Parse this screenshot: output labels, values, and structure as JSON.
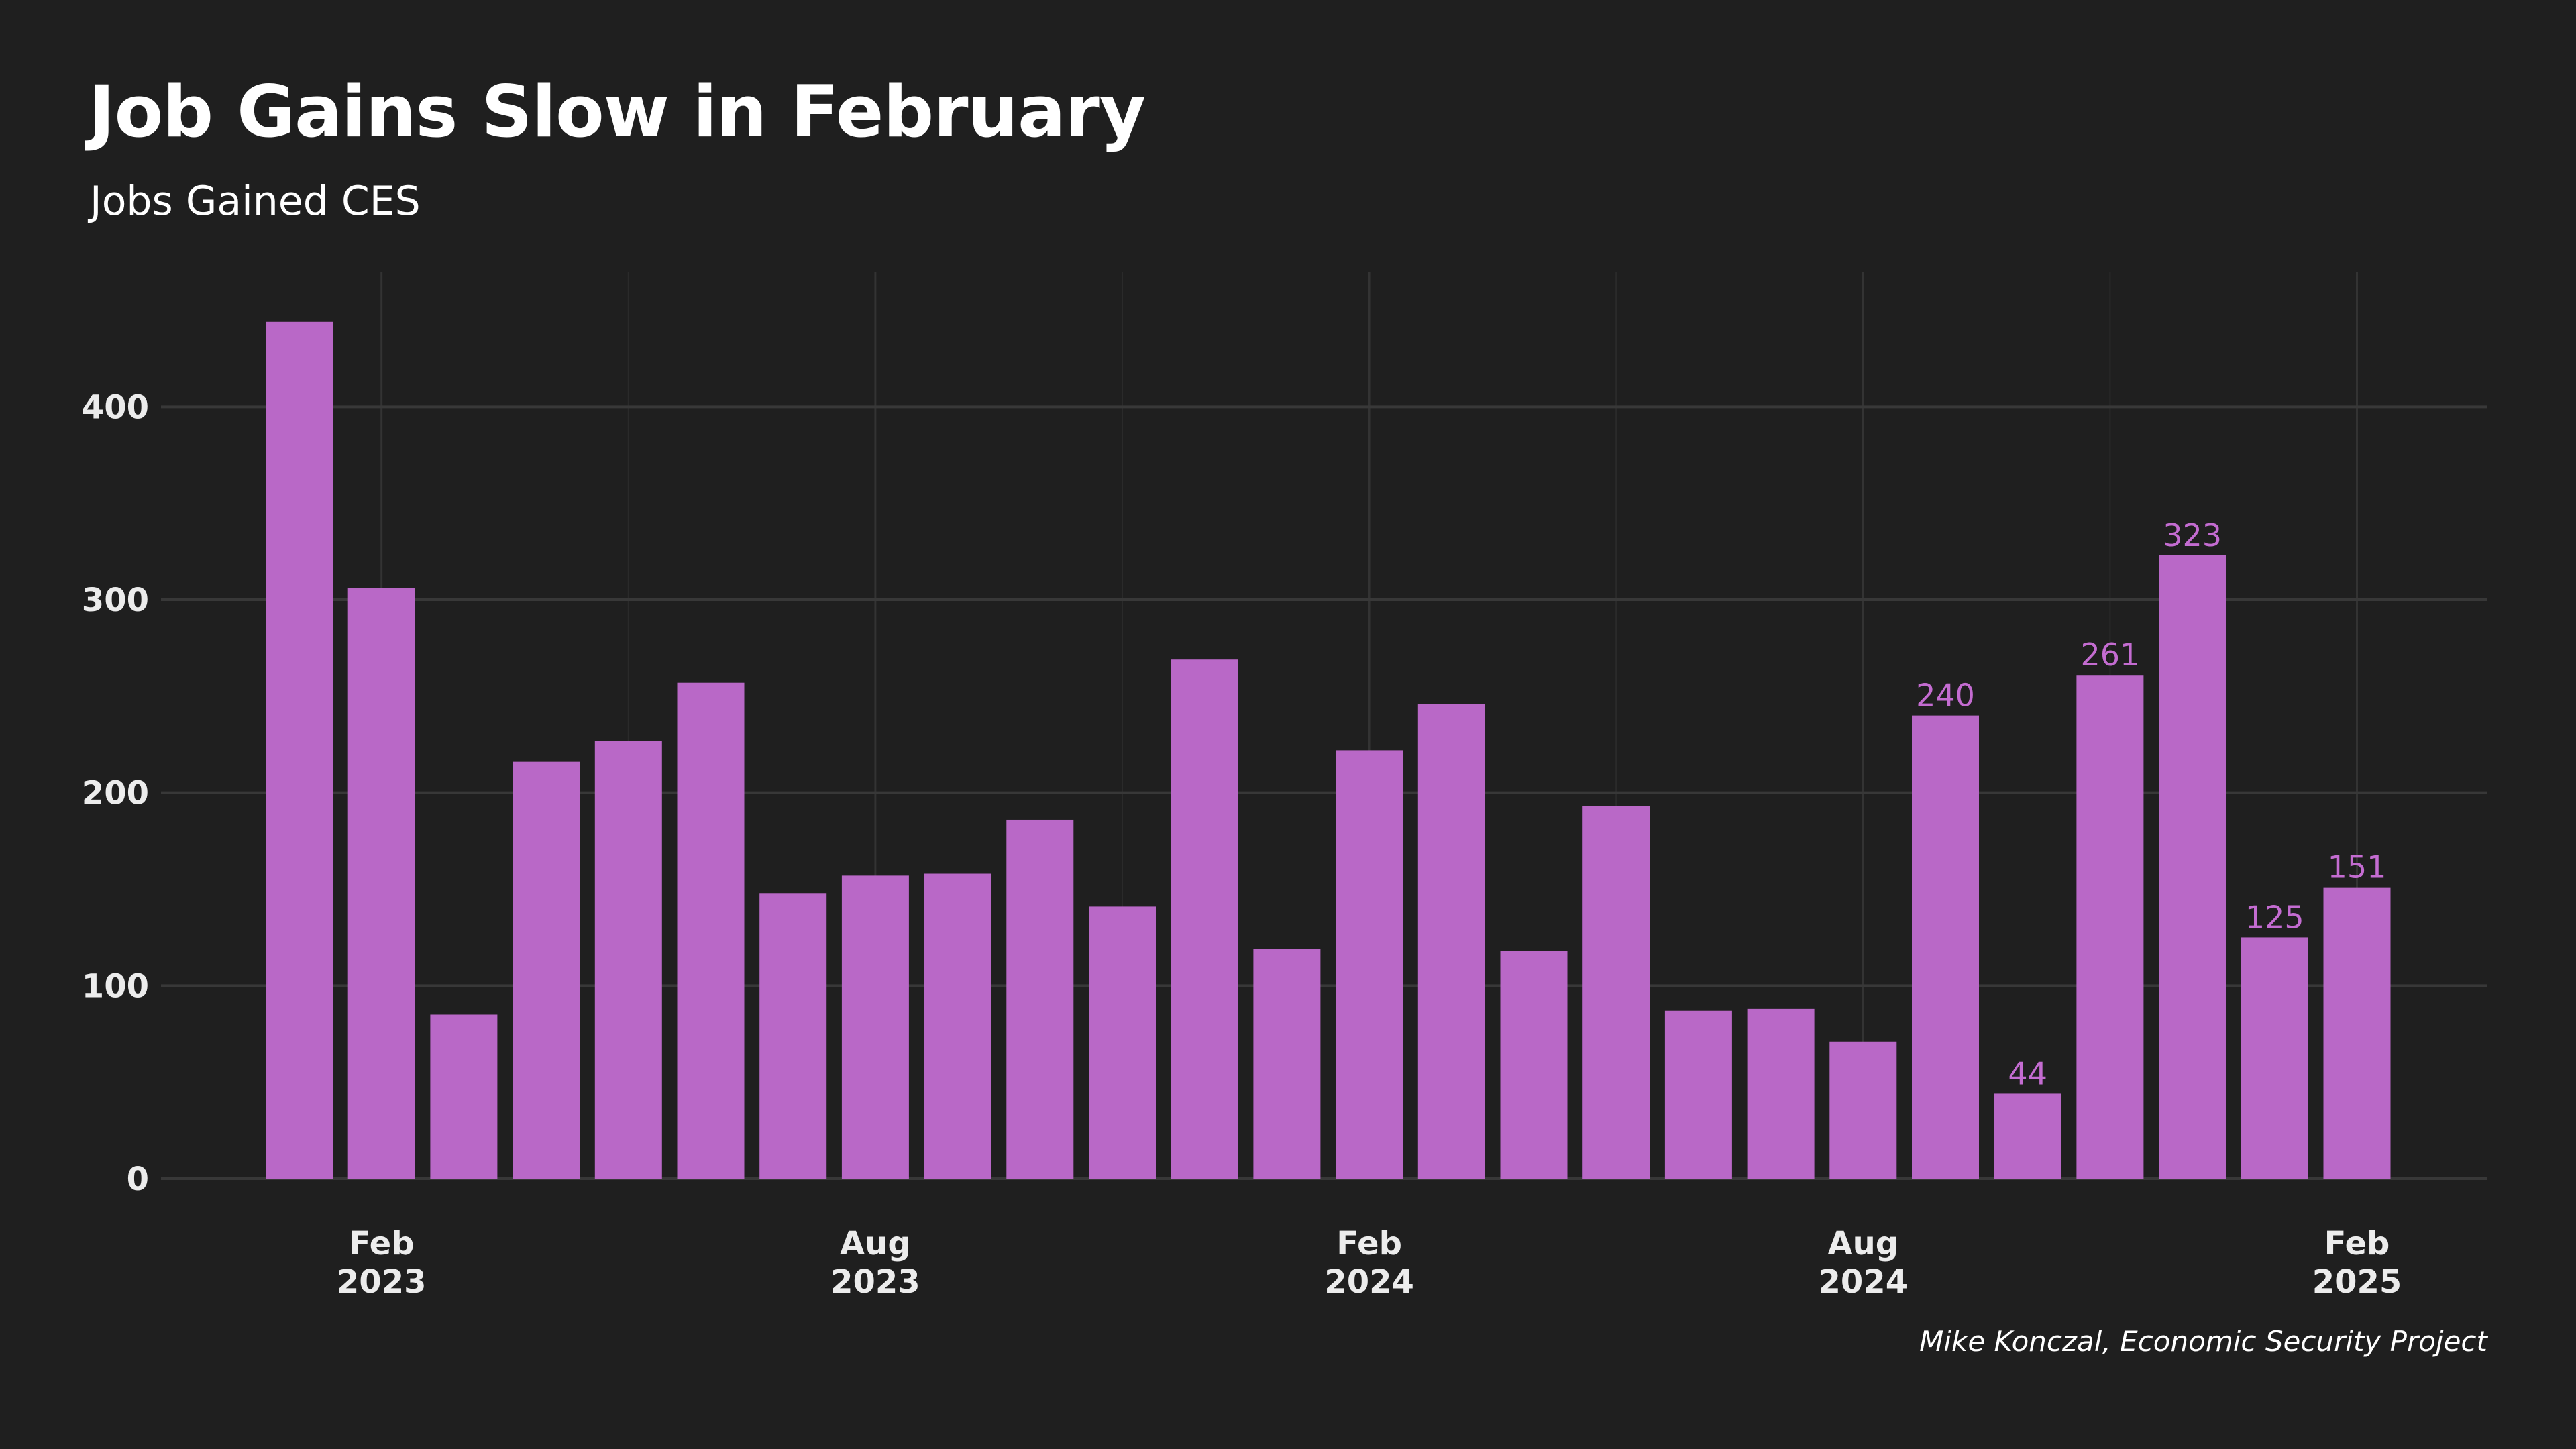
{
  "chart_data": {
    "type": "bar",
    "title": "Job Gains Slow in February",
    "subtitle": "Jobs Gained CES",
    "source": "Mike Konczal, Economic Security Project",
    "categories": [
      "Jan 2023",
      "Feb 2023",
      "Mar 2023",
      "Apr 2023",
      "May 2023",
      "Jun 2023",
      "Jul 2023",
      "Aug 2023",
      "Sep 2023",
      "Oct 2023",
      "Nov 2023",
      "Dec 2023",
      "Jan 2024",
      "Feb 2024",
      "Mar 2024",
      "Apr 2024",
      "May 2024",
      "Jun 2024",
      "Jul 2024",
      "Aug 2024",
      "Sep 2024",
      "Oct 2024",
      "Nov 2024",
      "Dec 2024",
      "Jan 2025",
      "Feb 2025"
    ],
    "values": [
      444,
      306,
      85,
      216,
      227,
      257,
      148,
      157,
      158,
      186,
      141,
      269,
      119,
      222,
      246,
      118,
      193,
      87,
      88,
      71,
      240,
      44,
      261,
      323,
      125,
      151
    ],
    "data_labels": [
      {
        "category": "Sep 2024",
        "value": 240,
        "text": "240"
      },
      {
        "category": "Oct 2024",
        "value": 44,
        "text": "44"
      },
      {
        "category": "Nov 2024",
        "value": 261,
        "text": "261"
      },
      {
        "category": "Dec 2024",
        "value": 323,
        "text": "323"
      },
      {
        "category": "Jan 2025",
        "value": 125,
        "text": "125"
      },
      {
        "category": "Feb 2025",
        "value": 151,
        "text": "151"
      }
    ],
    "x_ticks": [
      {
        "category": "Feb 2023",
        "line1": "Feb",
        "line2": "2023"
      },
      {
        "category": "Aug 2023",
        "line1": "Aug",
        "line2": "2023"
      },
      {
        "category": "Feb 2024",
        "line1": "Feb",
        "line2": "2024"
      },
      {
        "category": "Aug 2024",
        "line1": "Aug",
        "line2": "2024"
      },
      {
        "category": "Feb 2025",
        "line1": "Feb",
        "line2": "2025"
      }
    ],
    "y_ticks": [
      0,
      100,
      200,
      300,
      400
    ],
    "ylim": [
      0,
      470
    ],
    "grid": true,
    "xlabel": "",
    "ylabel": "",
    "colors": {
      "bar": "#b968c7",
      "label": "#c46cd1",
      "background": "#1f1f1f",
      "grid": "#333333",
      "text": "#ececec"
    }
  }
}
